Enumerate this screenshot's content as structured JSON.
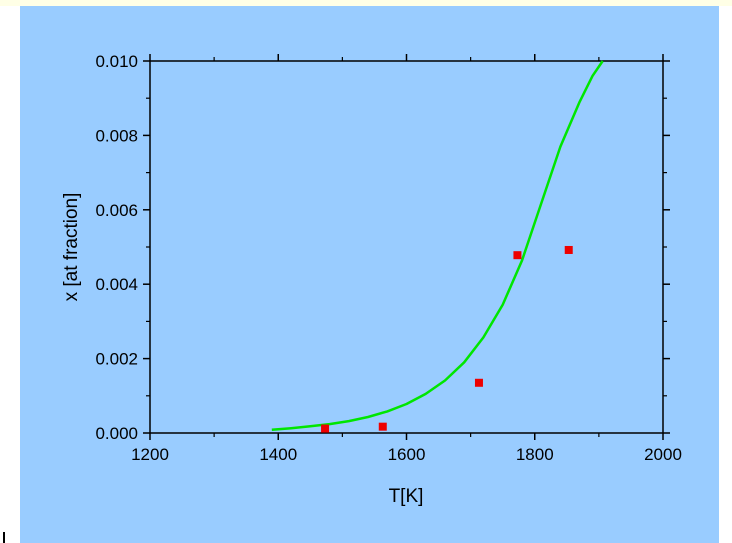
{
  "chart_data": {
    "type": "scatter",
    "title": "",
    "xlabel": "T[K]",
    "ylabel": "x [at fraction]",
    "xlim": [
      1200,
      2000
    ],
    "ylim": [
      0,
      0.01
    ],
    "x_ticks": [
      "1200",
      "1400",
      "1600",
      "1800",
      "2000"
    ],
    "y_ticks": [
      "0.000",
      "0.002",
      "0.004",
      "0.006",
      "0.008",
      "0.010"
    ],
    "grid": false,
    "series": [
      {
        "kind": "line",
        "color": "#00e600",
        "x": [
          1390,
          1420,
          1450,
          1480,
          1510,
          1540,
          1570,
          1600,
          1630,
          1660,
          1690,
          1720,
          1750,
          1780,
          1810,
          1840,
          1870,
          1890,
          1906
        ],
        "y": [
          9e-05,
          0.00013,
          0.00018,
          0.00024,
          0.00032,
          0.00043,
          0.00058,
          0.00078,
          0.00105,
          0.00141,
          0.0019,
          0.00257,
          0.00345,
          0.00463,
          0.00617,
          0.0077,
          0.0089,
          0.0096,
          0.01
        ]
      },
      {
        "kind": "scatter",
        "color": "#ee0000",
        "marker": "square",
        "x": [
          1473,
          1563,
          1713,
          1773,
          1853
        ],
        "y": [
          0.00012,
          0.00017,
          0.00135,
          0.00478,
          0.00492
        ]
      }
    ]
  }
}
